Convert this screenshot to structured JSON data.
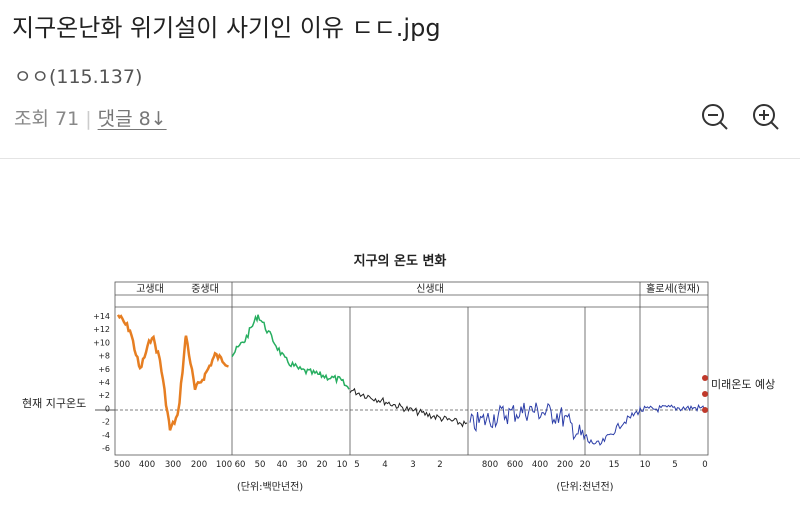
{
  "post": {
    "title": "지구온난화 위기설이 사기인 이유 ㄷㄷ.jpg",
    "author": "ㅇㅇ(115.137)",
    "views": "조회 71",
    "comments": "댓글 8↓"
  },
  "image": {
    "title": "지구의 온도 변화",
    "eras": [
      "고생대",
      "중생대",
      "신생대",
      "홀로세(현재)"
    ],
    "yticks": [
      "+14",
      "+12",
      "+10",
      "+8",
      "+6",
      "+4",
      "+2",
      "0",
      "-2",
      "-4",
      "-6"
    ],
    "xticks": [
      "500",
      "400",
      "300",
      "200",
      "100",
      "60",
      "50",
      "40",
      "30",
      "20",
      "10",
      "5",
      "4",
      "3",
      "2",
      "800",
      "600",
      "400",
      "200",
      "20",
      "15",
      "10",
      "5",
      "0"
    ],
    "unit_left": "(단위:백만년전)",
    "unit_right": "(단위:천년전)",
    "left_note": "현재 지구온도",
    "right_note": "미래온도 예상"
  }
}
